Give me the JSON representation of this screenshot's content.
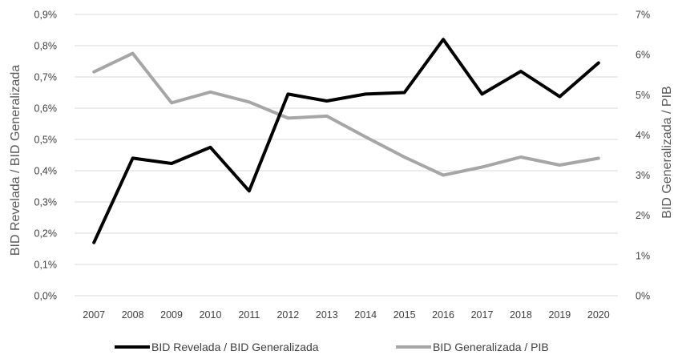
{
  "chart_data": {
    "type": "line",
    "x": [
      "2007",
      "2008",
      "2009",
      "2010",
      "2011",
      "2012",
      "2013",
      "2014",
      "2015",
      "2016",
      "2017",
      "2018",
      "2019",
      "2020"
    ],
    "y_left": {
      "label": "BID Revelada / BID Generalizada",
      "ylim": [
        0,
        0.9
      ],
      "ticks": [
        "0,0%",
        "0,1%",
        "0,2%",
        "0,3%",
        "0,4%",
        "0,5%",
        "0,6%",
        "0,7%",
        "0,8%",
        "0,9%"
      ]
    },
    "y_right": {
      "label": "BID Generalizada / PIB",
      "ylim": [
        0,
        7
      ],
      "ticks": [
        "0%",
        "1%",
        "2%",
        "3%",
        "4%",
        "5%",
        "6%",
        "7%"
      ]
    },
    "series": [
      {
        "name": "BID Revelada / BID Generalizada",
        "axis": "left",
        "color": "#000000",
        "values": [
          0.17,
          0.44,
          0.423,
          0.475,
          0.335,
          0.645,
          0.623,
          0.645,
          0.65,
          0.82,
          0.645,
          0.718,
          0.637,
          0.745
        ]
      },
      {
        "name": "BID Generalizada / PIB",
        "axis": "right",
        "color": "#a6a6a6",
        "values": [
          5.57,
          6.03,
          4.8,
          5.07,
          4.82,
          4.42,
          4.47,
          3.95,
          3.45,
          3.0,
          3.2,
          3.45,
          3.25,
          3.42
        ]
      }
    ],
    "grid": "horizontal",
    "legend": "bottom"
  }
}
